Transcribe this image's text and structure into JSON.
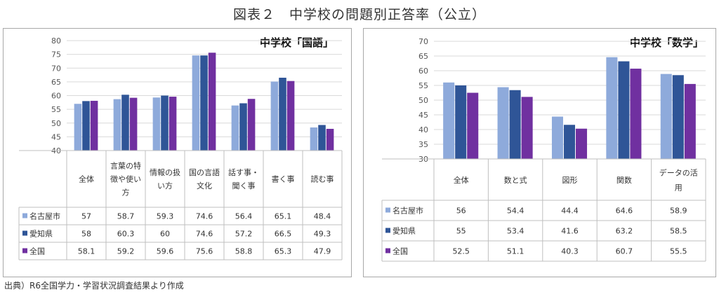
{
  "title": "図表２　中学校の問題別正答率（公立）",
  "source": "出典）R6全国学力・学習状況調査結果より作成",
  "colors": {
    "nagoya": "#8eaadb",
    "aichi": "#2f5597",
    "zenkoku": "#7030a0"
  },
  "chart_data": [
    {
      "type": "bar",
      "title": "中学校「国語」",
      "categories": [
        [
          "全体"
        ],
        [
          "言葉の特",
          "徴や使い",
          "方"
        ],
        [
          "情報の扱",
          "い方"
        ],
        [
          "国の言語",
          "文化"
        ],
        [
          "話す事・",
          "聞く事"
        ],
        [
          "書く事"
        ],
        [
          "読む事"
        ]
      ],
      "series": [
        {
          "name": "名古屋市",
          "values": [
            57,
            58.7,
            59.3,
            74.6,
            56.4,
            65.1,
            48.4
          ]
        },
        {
          "name": "愛知県",
          "values": [
            58,
            60.3,
            60,
            74.6,
            57.2,
            66.5,
            49.3
          ]
        },
        {
          "name": "全国",
          "values": [
            58.1,
            59.2,
            59.6,
            75.6,
            58.8,
            65.3,
            47.9
          ]
        }
      ],
      "ylim": [
        40,
        80
      ],
      "yticks": [
        40,
        45,
        50,
        55,
        60,
        65,
        70,
        75,
        80
      ],
      "grid": true,
      "legend": "table"
    },
    {
      "type": "bar",
      "title": "中学校「数学」",
      "categories": [
        [
          "全体"
        ],
        [
          "数と式"
        ],
        [
          "図形"
        ],
        [
          "関数"
        ],
        [
          "データの活",
          "用"
        ]
      ],
      "series": [
        {
          "name": "名古屋市",
          "values": [
            56,
            54.4,
            44.4,
            64.6,
            58.9
          ]
        },
        {
          "name": "愛知県",
          "values": [
            55,
            53.4,
            41.6,
            63.2,
            58.5
          ]
        },
        {
          "name": "全国",
          "values": [
            52.5,
            51.1,
            40.3,
            60.7,
            55.5
          ]
        }
      ],
      "ylim": [
        30,
        70
      ],
      "yticks": [
        30,
        35,
        40,
        45,
        50,
        55,
        60,
        65,
        70
      ],
      "grid": true,
      "legend": "table"
    }
  ]
}
